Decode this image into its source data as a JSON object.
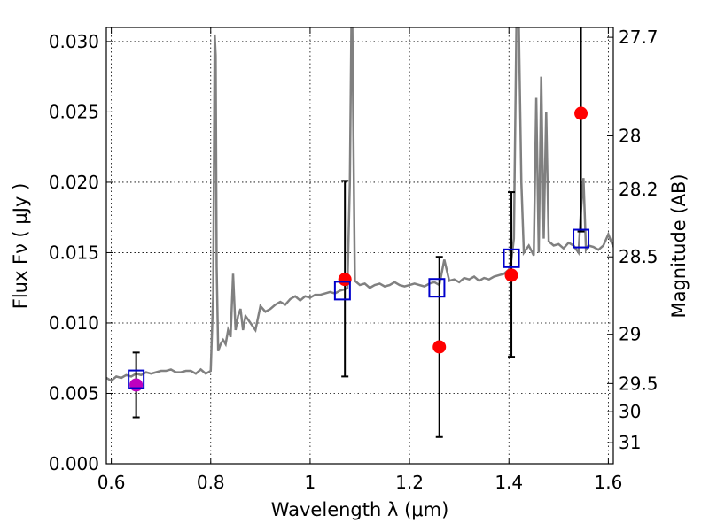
{
  "chart_data": {
    "type": "scatter",
    "xlabel": "Wavelength  λ (μm)",
    "ylabel_left": "Flux  Fν  ( μJy )",
    "ylabel_right": "Magnitude (AB)",
    "xlim": [
      0.59,
      1.61
    ],
    "ylim": [
      0,
      0.031
    ],
    "grid": true,
    "x_ticks": [
      0.6,
      0.8,
      1.0,
      1.2,
      1.4,
      1.6
    ],
    "x_tick_labels": [
      "0.6",
      "0.8",
      "1",
      "1.2",
      "1.4",
      "1.6"
    ],
    "y_ticks": [
      0.0,
      0.005,
      0.01,
      0.015,
      0.02,
      0.025,
      0.03
    ],
    "y_tick_labels": [
      "0.000",
      "0.005",
      "0.010",
      "0.015",
      "0.020",
      "0.025",
      "0.030"
    ],
    "right_ticks": [
      {
        "flux": 0.0303,
        "label": "27.7"
      },
      {
        "flux": 0.0233,
        "label": "28"
      },
      {
        "flux": 0.0195,
        "label": "28.2"
      },
      {
        "flux": 0.0147,
        "label": "28.5"
      },
      {
        "flux": 0.0092,
        "label": "29"
      },
      {
        "flux": 0.0057,
        "label": "29.5"
      },
      {
        "flux": 0.0037,
        "label": "30"
      },
      {
        "flux": 0.0015,
        "label": "31"
      }
    ],
    "colors": {
      "model": "#808080",
      "observed": "#ff0000",
      "observed_first": "#bf00bf",
      "model_photometry": "#0000cc",
      "errorbar": "#000000"
    },
    "series": [
      {
        "kind": "model_spectrum",
        "x": [
          0.59,
          0.6,
          0.61,
          0.62,
          0.63,
          0.64,
          0.65,
          0.66,
          0.67,
          0.68,
          0.69,
          0.7,
          0.71,
          0.72,
          0.73,
          0.74,
          0.75,
          0.76,
          0.77,
          0.78,
          0.79,
          0.8,
          0.805,
          0.808,
          0.81,
          0.812,
          0.815,
          0.82,
          0.825,
          0.83,
          0.835,
          0.84,
          0.845,
          0.85,
          0.855,
          0.86,
          0.865,
          0.87,
          0.88,
          0.89,
          0.9,
          0.91,
          0.92,
          0.93,
          0.94,
          0.95,
          0.96,
          0.97,
          0.98,
          0.99,
          1.0,
          1.01,
          1.02,
          1.03,
          1.04,
          1.05,
          1.06,
          1.07,
          1.075,
          1.08,
          1.083,
          1.085,
          1.088,
          1.09,
          1.1,
          1.11,
          1.12,
          1.13,
          1.14,
          1.15,
          1.16,
          1.17,
          1.18,
          1.19,
          1.2,
          1.21,
          1.22,
          1.23,
          1.24,
          1.25,
          1.26,
          1.27,
          1.28,
          1.29,
          1.3,
          1.31,
          1.32,
          1.33,
          1.34,
          1.35,
          1.36,
          1.37,
          1.38,
          1.39,
          1.4,
          1.405,
          1.41,
          1.415,
          1.42,
          1.425,
          1.43,
          1.44,
          1.45,
          1.455,
          1.46,
          1.465,
          1.47,
          1.475,
          1.48,
          1.49,
          1.5,
          1.51,
          1.52,
          1.53,
          1.54,
          1.545,
          1.55,
          1.555,
          1.56,
          1.57,
          1.58,
          1.59,
          1.6,
          1.61
        ],
        "y": [
          0.0061,
          0.0059,
          0.0062,
          0.0061,
          0.0063,
          0.0062,
          0.0064,
          0.0063,
          0.0065,
          0.0064,
          0.0065,
          0.0066,
          0.0066,
          0.0067,
          0.0065,
          0.0065,
          0.0066,
          0.0066,
          0.0064,
          0.0067,
          0.0064,
          0.0066,
          0.012,
          0.0305,
          0.029,
          0.014,
          0.008,
          0.0085,
          0.0088,
          0.0085,
          0.0095,
          0.009,
          0.0135,
          0.0095,
          0.0105,
          0.011,
          0.0095,
          0.0105,
          0.01,
          0.0095,
          0.0112,
          0.0108,
          0.011,
          0.0113,
          0.0115,
          0.0113,
          0.0117,
          0.0119,
          0.0116,
          0.0119,
          0.0118,
          0.012,
          0.012,
          0.0121,
          0.0122,
          0.0121,
          0.0123,
          0.0124,
          0.0125,
          0.02,
          0.031,
          0.031,
          0.02,
          0.013,
          0.0127,
          0.0128,
          0.0125,
          0.0127,
          0.0128,
          0.0126,
          0.0127,
          0.0129,
          0.0127,
          0.0126,
          0.0127,
          0.0128,
          0.0127,
          0.0126,
          0.0128,
          0.0129,
          0.0127,
          0.0145,
          0.013,
          0.0131,
          0.0129,
          0.0132,
          0.0131,
          0.0133,
          0.013,
          0.0132,
          0.0131,
          0.0133,
          0.0134,
          0.0135,
          0.0138,
          0.0145,
          0.016,
          0.031,
          0.031,
          0.02,
          0.015,
          0.0155,
          0.0148,
          0.026,
          0.015,
          0.0275,
          0.016,
          0.025,
          0.0158,
          0.0155,
          0.0156,
          0.0153,
          0.0157,
          0.0155,
          0.015,
          0.018,
          0.0203,
          0.0152,
          0.0155,
          0.0154,
          0.0152,
          0.0155,
          0.0163,
          0.0154
        ]
      },
      {
        "kind": "observed_photometry",
        "points": [
          {
            "x": 0.65,
            "y": 0.0056,
            "yerr_low": 0.0033,
            "yerr_high": 0.0079
          },
          {
            "x": 1.07,
            "y": 0.0131,
            "yerr_low": 0.0062,
            "yerr_high": 0.0201
          },
          {
            "x": 1.26,
            "y": 0.0083,
            "yerr_low": 0.0019,
            "yerr_high": 0.0147
          },
          {
            "x": 1.405,
            "y": 0.0134,
            "yerr_low": 0.0076,
            "yerr_high": 0.0193
          },
          {
            "x": 1.545,
            "y": 0.0249,
            "yerr_low": 0.0165,
            "yerr_high": 0.0315
          }
        ]
      },
      {
        "kind": "model_photometry",
        "points": [
          {
            "x": 0.65,
            "y": 0.006
          },
          {
            "x": 1.065,
            "y": 0.0123
          },
          {
            "x": 1.255,
            "y": 0.0125
          },
          {
            "x": 1.405,
            "y": 0.0146
          },
          {
            "x": 1.545,
            "y": 0.016
          }
        ]
      }
    ]
  }
}
